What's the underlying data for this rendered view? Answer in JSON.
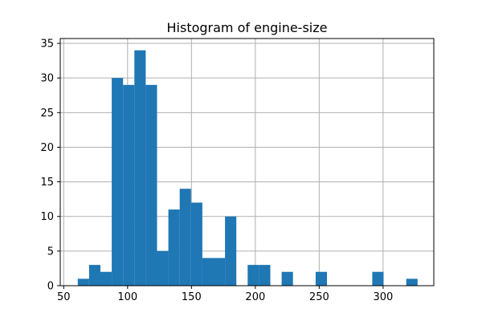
{
  "chart_data": {
    "type": "bar",
    "title": "Histogram of engine-size",
    "xlabel": "",
    "ylabel": "",
    "xlim": [
      47.3,
      339.7
    ],
    "ylim": [
      0,
      35.7
    ],
    "x_ticks": [
      50,
      100,
      150,
      200,
      250,
      300
    ],
    "y_ticks": [
      0,
      5,
      10,
      15,
      20,
      25,
      30,
      35
    ],
    "grid": true,
    "bin_start": 61,
    "bin_width": 8.8667,
    "counts": [
      1,
      3,
      2,
      30,
      29,
      34,
      29,
      5,
      11,
      14,
      12,
      4,
      4,
      10,
      0,
      3,
      3,
      0,
      2,
      0,
      0,
      2,
      0,
      0,
      0,
      0,
      2,
      0,
      0,
      1
    ],
    "bar_color": "#1f77b4"
  }
}
